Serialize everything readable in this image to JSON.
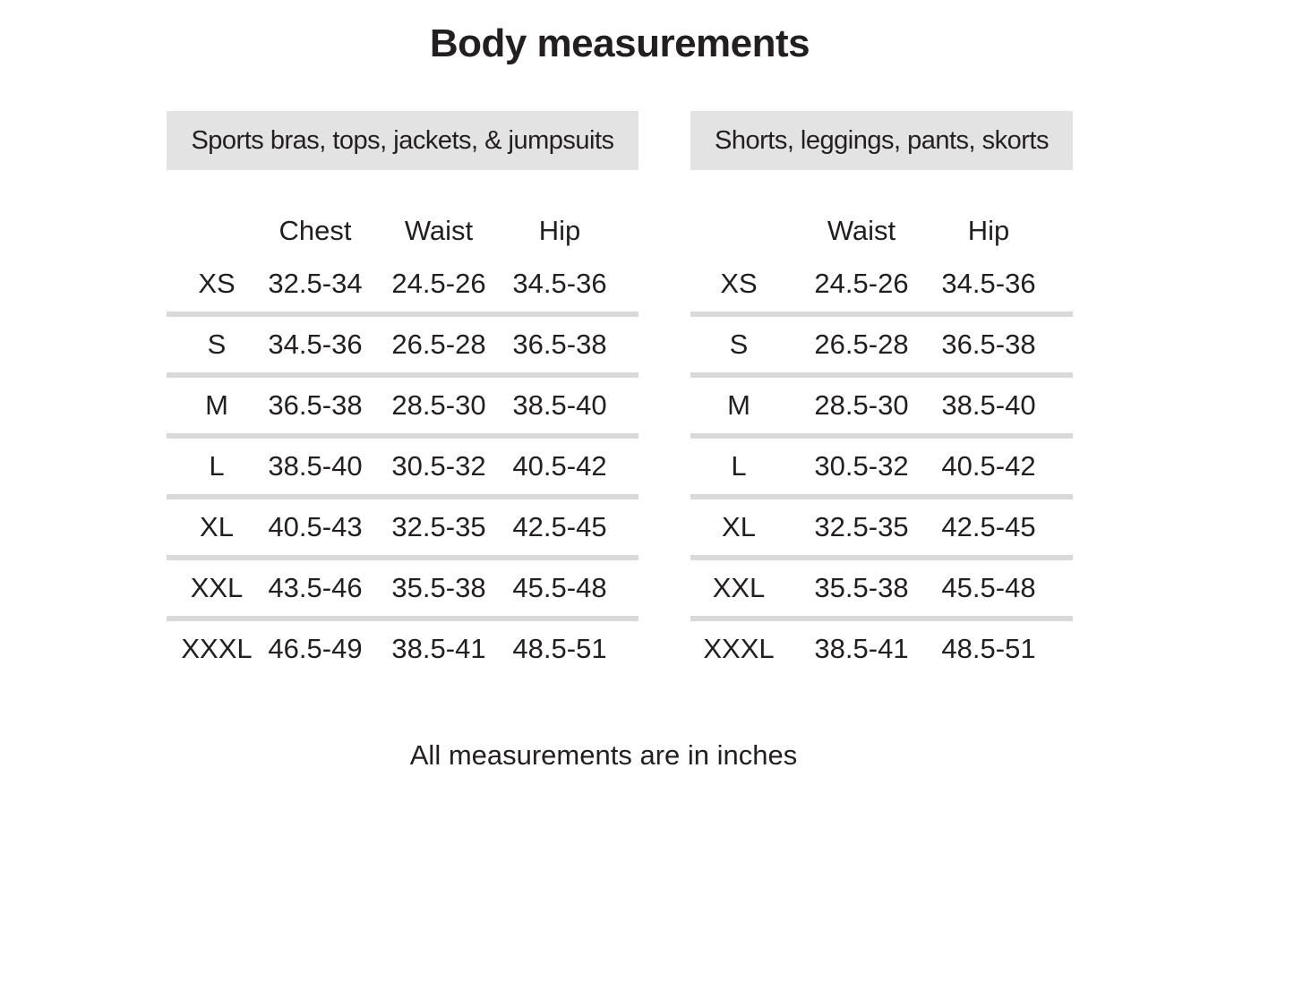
{
  "page": {
    "title": "Body measurements",
    "footer": "All measurements are in inches"
  },
  "colors": {
    "band_background": "#e3e3e3",
    "row_divider": "#d9d9d9",
    "text": "#231f20",
    "page_background": "#ffffff"
  },
  "tables": [
    {
      "header": "Sports bras, tops, jackets, & jumpsuits",
      "columns": [
        "Chest",
        "Waist",
        "Hip"
      ],
      "rows": [
        {
          "size": "XS",
          "chest": "32.5-34",
          "waist": "24.5-26",
          "hip": "34.5-36"
        },
        {
          "size": "S",
          "chest": "34.5-36",
          "waist": "26.5-28",
          "hip": "36.5-38"
        },
        {
          "size": "M",
          "chest": "36.5-38",
          "waist": "28.5-30",
          "hip": "38.5-40"
        },
        {
          "size": "L",
          "chest": "38.5-40",
          "waist": "30.5-32",
          "hip": "40.5-42"
        },
        {
          "size": "XL",
          "chest": "40.5-43",
          "waist": "32.5-35",
          "hip": "42.5-45"
        },
        {
          "size": "XXL",
          "chest": "43.5-46",
          "waist": "35.5-38",
          "hip": "45.5-48"
        },
        {
          "size": "XXXL",
          "chest": "46.5-49",
          "waist": "38.5-41",
          "hip": "48.5-51"
        }
      ]
    },
    {
      "header": "Shorts, leggings, pants, skorts",
      "columns": [
        "Waist",
        "Hip"
      ],
      "rows": [
        {
          "size": "XS",
          "waist": "24.5-26",
          "hip": "34.5-36"
        },
        {
          "size": "S",
          "waist": "26.5-28",
          "hip": "36.5-38"
        },
        {
          "size": "M",
          "waist": "28.5-30",
          "hip": "38.5-40"
        },
        {
          "size": "L",
          "waist": "30.5-32",
          "hip": "40.5-42"
        },
        {
          "size": "XL",
          "waist": "32.5-35",
          "hip": "42.5-45"
        },
        {
          "size": "XXL",
          "waist": "35.5-38",
          "hip": "45.5-48"
        },
        {
          "size": "XXXL",
          "waist": "38.5-41",
          "hip": "48.5-51"
        }
      ]
    }
  ]
}
